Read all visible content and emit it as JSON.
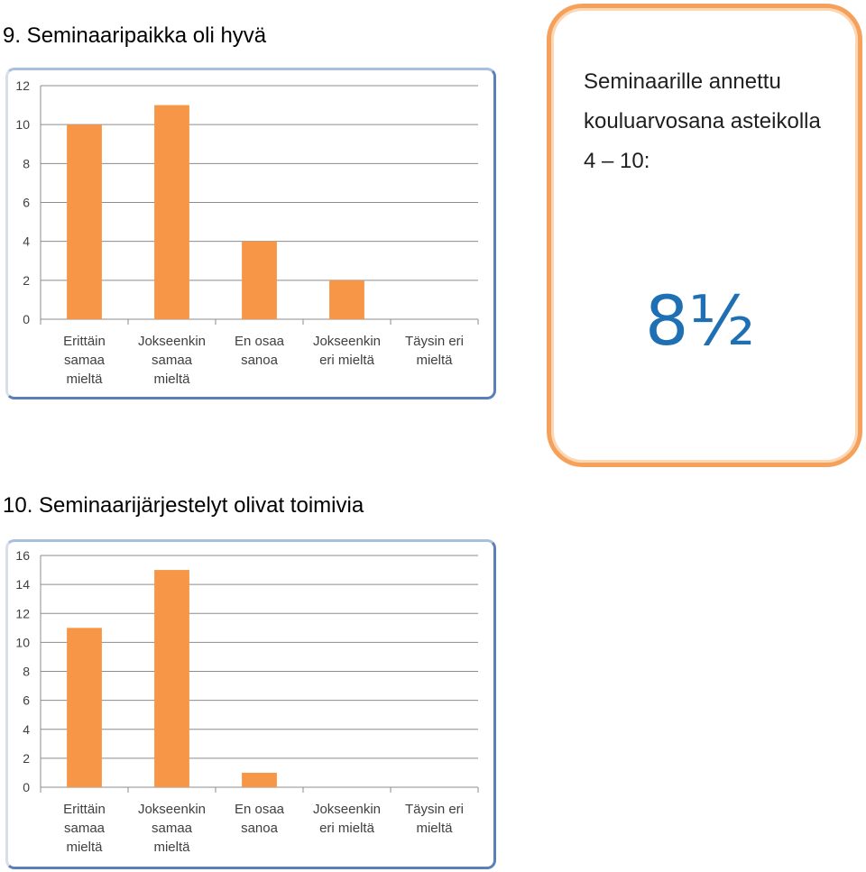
{
  "heading1": "9. Seminaaripaikka oli hyvä",
  "heading2": "10. Seminaarijärjestelyt olivat toimivia",
  "callout": {
    "line1": "Seminaarille annettu",
    "line2": "kouluarvosana asteikolla",
    "line3": "4 – 10:",
    "grade": "8½"
  },
  "colors": {
    "bar": "#f79646",
    "frame": "#5b7fb9",
    "callout_border": "#f5a15b",
    "grade": "#1e6fb3"
  },
  "chart_data": [
    {
      "type": "bar",
      "categories": [
        [
          "Erittäin",
          "samaa",
          "mieltä"
        ],
        [
          "Jokseenkin",
          "samaa",
          "mieltä"
        ],
        [
          "En osaa",
          "sanoa"
        ],
        [
          "Jokseenkin",
          "eri mieltä"
        ],
        [
          "Täysin eri",
          "mieltä"
        ]
      ],
      "values": [
        10,
        11,
        4,
        2,
        0
      ],
      "ylim": [
        0,
        12
      ],
      "yticks": [
        0,
        2,
        4,
        6,
        8,
        10,
        12
      ],
      "grid": true,
      "legend": "none"
    },
    {
      "type": "bar",
      "categories": [
        [
          "Erittäin",
          "samaa",
          "mieltä"
        ],
        [
          "Jokseenkin",
          "samaa",
          "mieltä"
        ],
        [
          "En osaa",
          "sanoa"
        ],
        [
          "Jokseenkin",
          "eri mieltä"
        ],
        [
          "Täysin eri",
          "mieltä"
        ]
      ],
      "values": [
        11,
        15,
        1,
        0,
        0
      ],
      "ylim": [
        0,
        16
      ],
      "yticks": [
        0,
        2,
        4,
        6,
        8,
        10,
        12,
        14,
        16
      ],
      "grid": true,
      "legend": "none"
    }
  ]
}
